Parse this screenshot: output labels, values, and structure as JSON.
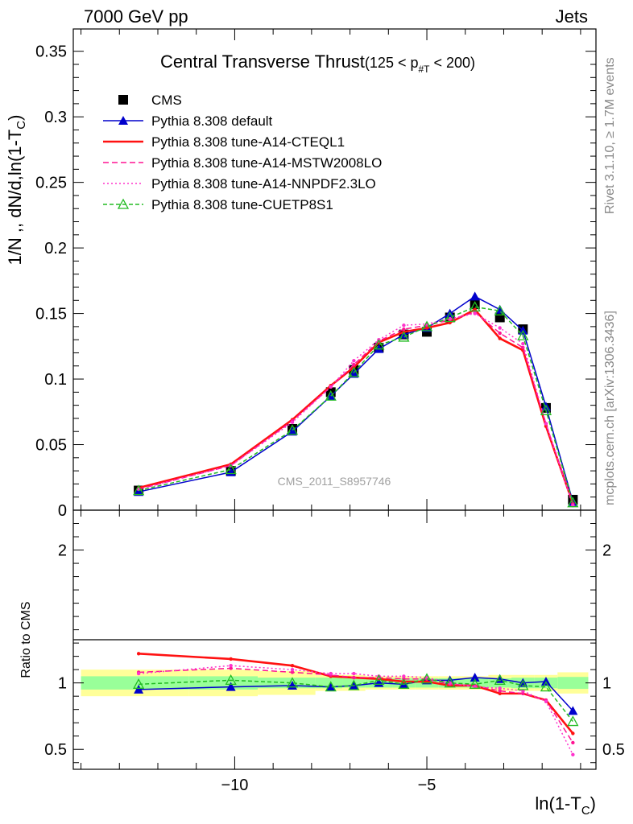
{
  "header": {
    "left": "7000 GeV pp",
    "right": "Jets"
  },
  "side_labels": {
    "rivet": "Rivet 3.1.10, ≥ 1.7M events",
    "mcplots": "mcplots.cern.ch [arXiv:1306.3436]"
  },
  "watermark": "CMS_2011_S8957746",
  "chart_data": [
    {
      "type": "line",
      "title": "Central Transverse Thrust",
      "title_suffix": "(125 < p",
      "title_sub": "#T",
      "title_end": " < 200)",
      "ylabel": "1/N ,, dN/d,ln(1-T",
      "ylabel_sub": "C",
      "ylabel_end": ")",
      "xlim": [
        -14.2,
        -0.6
      ],
      "ylim": [
        0,
        0.367
      ],
      "yticks": [
        0,
        0.05,
        0.1,
        0.15,
        0.2,
        0.25,
        0.3,
        0.35
      ],
      "ytick_labels": [
        "0",
        "0.05",
        "0.1",
        "0.15",
        "0.2",
        "0.25",
        "0.3",
        "0.35"
      ],
      "legend_position": "top-left",
      "x": [
        -12.5,
        -10.1,
        -8.5,
        -7.5,
        -6.9,
        -6.25,
        -5.6,
        -5.0,
        -4.4,
        -3.75,
        -3.1,
        -2.5,
        -1.9,
        -1.2
      ],
      "series": [
        {
          "name": "CMS",
          "color": "#000000",
          "marker": "square",
          "dash": "none",
          "values": [
            0.015,
            0.03,
            0.062,
            0.09,
            0.107,
            0.124,
            0.134,
            0.136,
            0.147,
            0.157,
            0.147,
            0.138,
            0.078,
            0.008
          ]
        },
        {
          "name": "Pythia 8.308 default",
          "color": "#0000cc",
          "marker": "triangle",
          "dash": "none",
          "values": [
            0.014,
            0.029,
            0.06,
            0.087,
            0.104,
            0.123,
            0.134,
            0.139,
            0.15,
            0.163,
            0.153,
            0.137,
            0.079,
            0.0063
          ]
        },
        {
          "name": "Pythia 8.308 tune-A14-CTEQL1",
          "color": "#ff1111",
          "marker": "none",
          "dash": "none",
          "values": [
            0.017,
            0.035,
            0.069,
            0.095,
            0.109,
            0.128,
            0.136,
            0.139,
            0.143,
            0.153,
            0.131,
            0.122,
            0.064,
            0.005
          ]
        },
        {
          "name": "Pythia 8.308 tune-A14-MSTW2008LO",
          "color": "#ff1493",
          "marker": "none",
          "dash": "7,4",
          "values": [
            0.016,
            0.034,
            0.068,
            0.094,
            0.111,
            0.129,
            0.138,
            0.141,
            0.145,
            0.151,
            0.135,
            0.124,
            0.066,
            0.0045
          ]
        },
        {
          "name": "Pythia 8.308 tune-A14-NNPDF2.3LO",
          "color": "#ff33cc",
          "marker": "none",
          "dash": "2,3",
          "values": [
            0.016,
            0.034,
            0.067,
            0.094,
            0.114,
            0.13,
            0.141,
            0.142,
            0.146,
            0.15,
            0.139,
            0.127,
            0.066,
            0.0035
          ]
        },
        {
          "name": "Pythia 8.308 tune-CUETP8S1",
          "color": "#22bb22",
          "marker": "open-triangle",
          "dash": "5,3",
          "values": [
            0.015,
            0.031,
            0.061,
            0.087,
            0.105,
            0.126,
            0.132,
            0.14,
            0.147,
            0.155,
            0.152,
            0.133,
            0.076,
            0.0057
          ]
        }
      ]
    },
    {
      "type": "line",
      "ylabel": "Ratio to CMS",
      "xlabel": "ln(1-T",
      "xlabel_sub": "C",
      "xlabel_end": ")",
      "xlim": [
        -14.2,
        -0.6
      ],
      "ylim": [
        0.35,
        2.3
      ],
      "yticks": [
        0.5,
        1,
        2
      ],
      "ytick_labels": [
        "0.5",
        "1",
        "2"
      ],
      "xticks": [
        -10,
        -5
      ],
      "xtick_labels": [
        "−10",
        "−5"
      ],
      "bands": {
        "yellow_color": "#ffff99",
        "green_color": "#99ff99",
        "edges": [
          -14.0,
          -11.2,
          -9.4,
          -7.9,
          -7.2,
          -6.6,
          -5.9,
          -5.3,
          -4.7,
          -4.1,
          -3.4,
          -2.8,
          -2.2,
          -1.6,
          -0.8
        ],
        "yellow_half_width": [
          0.1,
          0.1,
          0.09,
          0.06,
          0.06,
          0.05,
          0.05,
          0.05,
          0.05,
          0.05,
          0.06,
          0.06,
          0.06,
          0.08
        ],
        "green_half_width": [
          0.05,
          0.05,
          0.04,
          0.04,
          0.035,
          0.035,
          0.035,
          0.035,
          0.035,
          0.035,
          0.035,
          0.04,
          0.04,
          0.045
        ]
      },
      "x": [
        -12.5,
        -10.1,
        -8.5,
        -7.5,
        -6.9,
        -6.25,
        -5.6,
        -5.0,
        -4.4,
        -3.75,
        -3.1,
        -2.5,
        -1.9,
        -1.2
      ],
      "series": [
        {
          "name": "Pythia 8.308 default",
          "color": "#0000cc",
          "marker": "triangle",
          "dash": "none",
          "values": [
            0.95,
            0.97,
            0.98,
            0.97,
            0.98,
            1.0,
            0.99,
            1.02,
            1.02,
            1.04,
            1.03,
            1.0,
            1.01,
            0.79
          ]
        },
        {
          "name": "Pythia 8.308 tune-A14-CTEQL1",
          "color": "#ff1111",
          "marker": "none",
          "dash": "none",
          "values": [
            1.22,
            1.18,
            1.13,
            1.05,
            1.04,
            1.03,
            1.01,
            1.01,
            0.98,
            0.98,
            0.92,
            0.92,
            0.87,
            0.62
          ]
        },
        {
          "name": "Pythia 8.308 tune-A14-MSTW2008LO",
          "color": "#ff1493",
          "marker": "none",
          "dash": "7,4",
          "values": [
            1.08,
            1.11,
            1.08,
            1.06,
            1.04,
            1.04,
            1.03,
            1.03,
            0.99,
            0.98,
            0.94,
            0.92,
            0.87,
            0.55
          ]
        },
        {
          "name": "Pythia 8.308 tune-A14-NNPDF2.3LO",
          "color": "#ff33cc",
          "marker": "none",
          "dash": "2,3",
          "values": [
            1.07,
            1.13,
            1.1,
            1.07,
            1.07,
            1.05,
            1.05,
            1.04,
            1.0,
            0.97,
            0.96,
            0.94,
            0.86,
            0.46
          ]
        },
        {
          "name": "Pythia 8.308 tune-CUETP8S1",
          "color": "#22bb22",
          "marker": "open-triangle",
          "dash": "5,3",
          "values": [
            0.99,
            1.02,
            1.0,
            0.97,
            0.98,
            1.02,
            0.99,
            1.03,
            1.0,
            0.99,
            1.02,
            0.98,
            0.97,
            0.71
          ]
        }
      ]
    }
  ]
}
